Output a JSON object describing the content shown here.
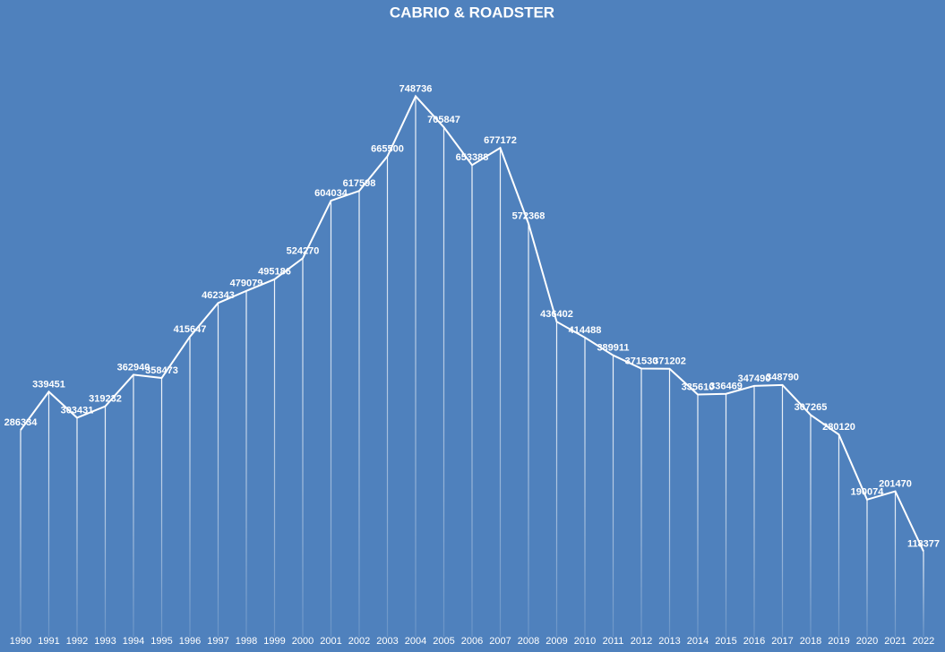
{
  "chart_data": {
    "type": "line",
    "title": "CABRIO & ROADSTER",
    "categories": [
      "1990",
      "1991",
      "1992",
      "1993",
      "1994",
      "1995",
      "1996",
      "1997",
      "1998",
      "1999",
      "2000",
      "2001",
      "2002",
      "2003",
      "2004",
      "2005",
      "2006",
      "2007",
      "2008",
      "2009",
      "2010",
      "2011",
      "2012",
      "2013",
      "2014",
      "2015",
      "2016",
      "2017",
      "2018",
      "2019",
      "2020",
      "2021",
      "2022"
    ],
    "values": [
      286334,
      339451,
      303431,
      319232,
      362940,
      358473,
      415647,
      462343,
      479079,
      495186,
      524270,
      604034,
      617598,
      665500,
      748736,
      705847,
      653388,
      677172,
      572368,
      436402,
      414488,
      389911,
      371530,
      371202,
      335610,
      336469,
      347490,
      348790,
      307265,
      280120,
      190074,
      201470,
      118377
    ],
    "color": "#ffffff",
    "ylim": [
      0,
      820000
    ]
  }
}
